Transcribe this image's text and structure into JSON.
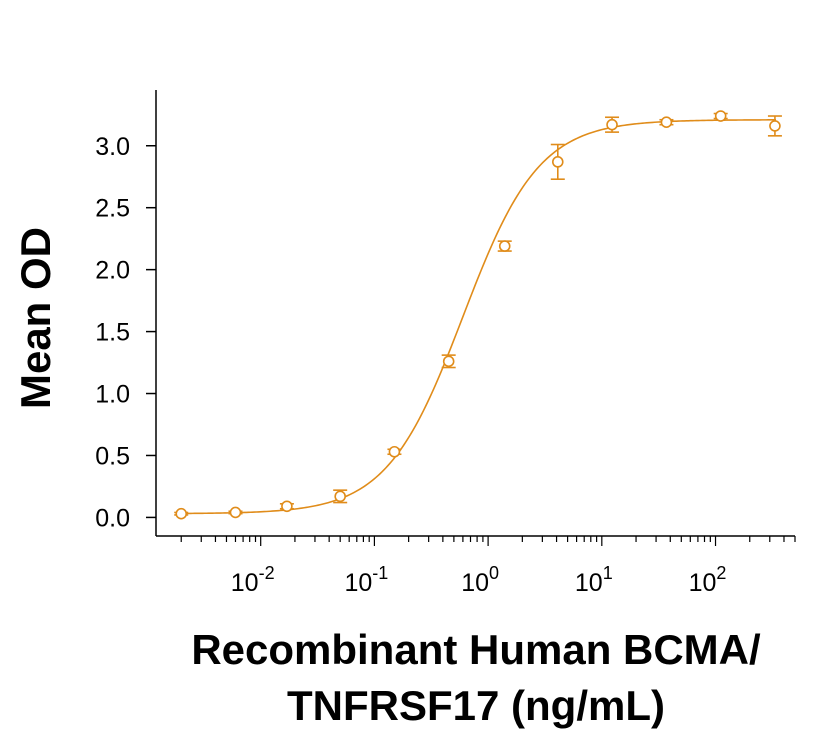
{
  "chart_data": {
    "type": "scatter",
    "title": "",
    "xlabel_lines": [
      "Recombinant Human BCMA/",
      "TNFRSF17 (ng/mL)"
    ],
    "ylabel": "Mean OD",
    "x_scale": "log",
    "xlim": [
      0.0012,
      500
    ],
    "ylim": [
      -0.15,
      3.45
    ],
    "y_ticks": [
      "0.0",
      "0.5",
      "1.0",
      "1.5",
      "2.0",
      "2.5",
      "3.0"
    ],
    "x_ticks": [
      {
        "base": "10",
        "exp": "-2",
        "value": 0.01
      },
      {
        "base": "10",
        "exp": "-1",
        "value": 0.1
      },
      {
        "base": "10",
        "exp": "0",
        "value": 1
      },
      {
        "base": "10",
        "exp": "1",
        "value": 10
      },
      {
        "base": "10",
        "exp": "2",
        "value": 100
      }
    ],
    "color": "#E08C1A",
    "grid": false,
    "series": [
      {
        "x": [
          0.002,
          0.006,
          0.017,
          0.05,
          0.15,
          0.45,
          1.4,
          4.1,
          12.3,
          37,
          111,
          333
        ],
        "y": [
          0.03,
          0.04,
          0.09,
          0.17,
          0.53,
          1.26,
          2.19,
          2.87,
          3.17,
          3.19,
          3.24,
          3.16
        ],
        "err": [
          0.01,
          0.01,
          0.02,
          0.05,
          0.02,
          0.05,
          0.04,
          0.14,
          0.06,
          0.02,
          0.02,
          0.08
        ]
      }
    ],
    "fit_curve": {
      "bottom": 0.03,
      "top": 3.21,
      "ec50": 0.6,
      "hill": 1.3
    }
  }
}
